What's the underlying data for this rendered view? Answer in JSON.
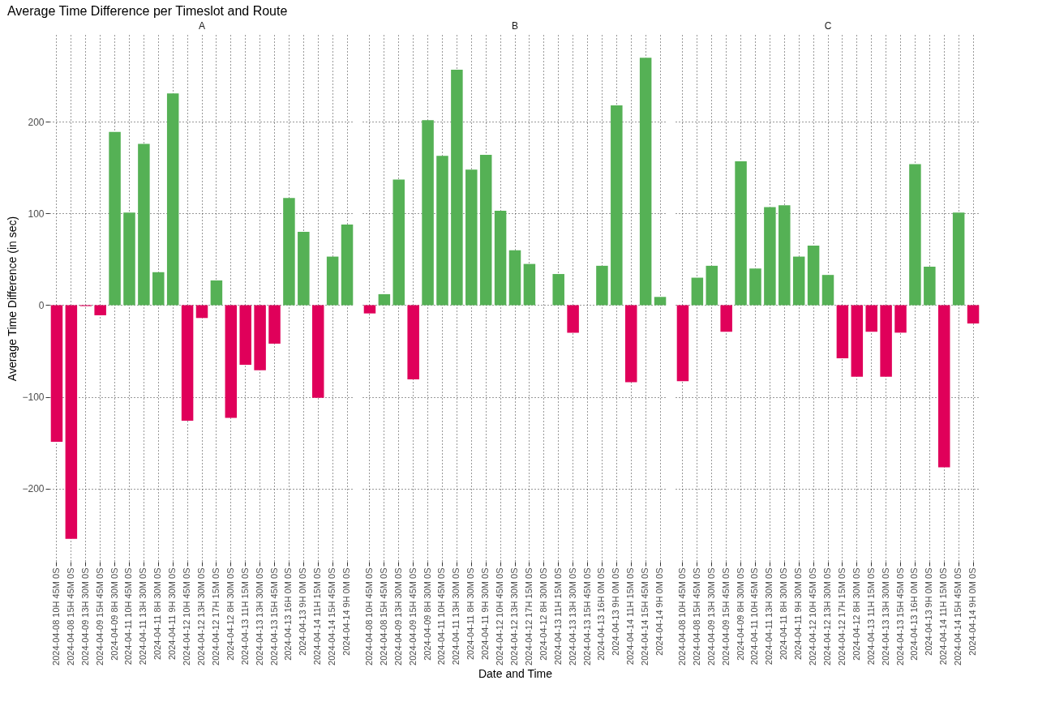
{
  "chart_data": [
    {
      "type": "bar",
      "title": "A",
      "ylabel": "Average Time Difference (in sec)",
      "annotations": [
        "Average Time Difference per Timeslot and Route"
      ],
      "categories": [
        "2024-04-08 10H 45M 0S",
        "2024-04-08 15H 45M 0S",
        "2024-04-09 13H 30M 0S",
        "2024-04-09 15H 45M 0S",
        "2024-04-09 8H 30M 0S",
        "2024-04-11 10H 45M 0S",
        "2024-04-11 13H 30M 0S",
        "2024-04-11 8H 30M 0S",
        "2024-04-11 9H 30M 0S",
        "2024-04-12 10H 45M 0S",
        "2024-04-12 13H 30M 0S",
        "2024-04-12 17H 15M 0S",
        "2024-04-12 8H 30M 0S",
        "2024-04-13 11H 15M 0S",
        "2024-04-13 13H 30M 0S",
        "2024-04-13 15H 45M 0S",
        "2024-04-13 16H 0M 0S",
        "2024-04-13 9H 0M 0S",
        "2024-04-14 11H 15M 0S",
        "2024-04-14 15H 45M 0S",
        "2024-04-14 9H 0M 0S"
      ],
      "values": [
        -149,
        -255,
        -1,
        -11,
        189,
        101,
        176,
        36,
        231,
        -126,
        -14,
        27,
        -123,
        -65,
        -71,
        -42,
        117,
        80,
        -101,
        53,
        88
      ],
      "colors": [
        "#e0005a",
        "#e0005a",
        "#e0005a",
        "#e0005a",
        "#55b155",
        "#55b155",
        "#55b155",
        "#55b155",
        "#55b155",
        "#e0005a",
        "#e0005a",
        "#55b155",
        "#e0005a",
        "#e0005a",
        "#e0005a",
        "#e0005a",
        "#55b155",
        "#55b155",
        "#e0005a",
        "#55b155",
        "#55b155"
      ],
      "ylim": [
        -280,
        295
      ],
      "yticks": [
        -200,
        -100,
        0,
        100,
        200
      ],
      "grid": true
    },
    {
      "type": "bar",
      "title": "B",
      "xlabel": "Date and Time",
      "tick_labels": "x",
      "categories": [
        "2024-04-08 10H 45M 0S",
        "2024-04-08 15H 45M 0S",
        "2024-04-09 13H 30M 0S",
        "2024-04-09 15H 45M 0S",
        "2024-04-09 8H 30M 0S",
        "2024-04-11 10H 45M 0S",
        "2024-04-11 13H 30M 0S",
        "2024-04-11 8H 30M 0S",
        "2024-04-11 9H 30M 0S",
        "2024-04-12 10H 45M 0S",
        "2024-04-12 13H 30M 0S",
        "2024-04-12 17H 15M 0S",
        "2024-04-12 8H 30M 0S",
        "2024-04-13 11H 15M 0S",
        "2024-04-13 13H 30M 0S",
        "2024-04-13 15H 45M 0S",
        "2024-04-13 16H 0M 0S",
        "2024-04-13 9H 0M 0S",
        "2024-04-14 11H 15M 0S",
        "2024-04-14 15H 45M 0S",
        "2024-04-14 9H 0M 0S"
      ],
      "values": [
        -9,
        12,
        137,
        -81,
        202,
        163,
        257,
        148,
        164,
        103,
        60,
        45,
        null,
        34,
        -30,
        null,
        43,
        218,
        -84,
        270,
        9
      ],
      "colors": [
        "#e0005a",
        "#55b155",
        "#55b155",
        "#e0005a",
        "#55b155",
        "#55b155",
        "#55b155",
        "#55b155",
        "#55b155",
        "#55b155",
        "#55b155",
        "#55b155",
        null,
        "#55b155",
        "#e0005a",
        null,
        "#55b155",
        "#55b155",
        "#e0005a",
        "#55b155",
        "#55b155"
      ],
      "ylim": [
        -280,
        295
      ],
      "yticks": [
        -200,
        -100,
        0,
        100,
        200
      ],
      "grid": true
    },
    {
      "type": "bar",
      "title": "C",
      "tick_labels": "x",
      "categories": [
        "2024-04-08 10H 45M 0S",
        "2024-04-08 15H 45M 0S",
        "2024-04-09 13H 30M 0S",
        "2024-04-09 15H 45M 0S",
        "2024-04-09 8H 30M 0S",
        "2024-04-11 10H 45M 0S",
        "2024-04-11 13H 30M 0S",
        "2024-04-11 8H 30M 0S",
        "2024-04-11 9H 30M 0S",
        "2024-04-12 10H 45M 0S",
        "2024-04-12 13H 30M 0S",
        "2024-04-12 17H 15M 0S",
        "2024-04-12 8H 30M 0S",
        "2024-04-13 11H 15M 0S",
        "2024-04-13 13H 30M 0S",
        "2024-04-13 15H 45M 0S",
        "2024-04-13 16H 0M 0S",
        "2024-04-13 9H 0M 0S",
        "2024-04-14 11H 15M 0S",
        "2024-04-14 15H 45M 0S",
        "2024-04-14 9H 0M 0S"
      ],
      "values": [
        -83,
        30,
        43,
        -29,
        157,
        40,
        107,
        109,
        53,
        65,
        33,
        -58,
        -78,
        -29,
        -78,
        -30,
        154,
        42,
        -177,
        101,
        -20
      ],
      "colors": [
        "#e0005a",
        "#55b155",
        "#55b155",
        "#e0005a",
        "#55b155",
        "#55b155",
        "#55b155",
        "#55b155",
        "#55b155",
        "#55b155",
        "#55b155",
        "#e0005a",
        "#e0005a",
        "#e0005a",
        "#e0005a",
        "#e0005a",
        "#55b155",
        "#55b155",
        "#e0005a",
        "#55b155",
        "#e0005a"
      ],
      "ylim": [
        -280,
        295
      ],
      "yticks": [
        -200,
        -100,
        0,
        100,
        200
      ],
      "grid": true
    }
  ]
}
